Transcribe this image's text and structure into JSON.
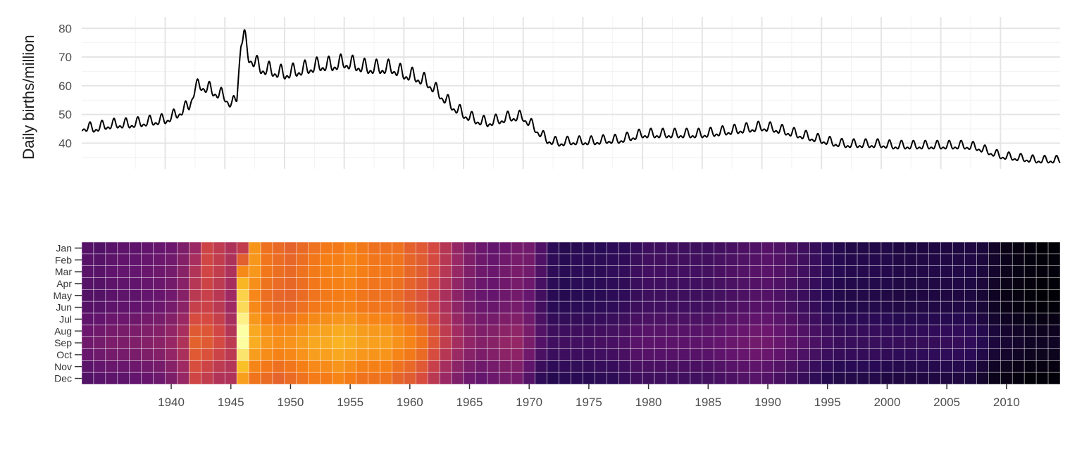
{
  "chart_data": [
    {
      "type": "line",
      "title": "",
      "xlabel": "",
      "ylabel": "Daily births/million",
      "xlim": [
        1933,
        2015
      ],
      "ylim": [
        31,
        84
      ],
      "yticks": [
        40,
        50,
        60,
        70,
        80
      ],
      "grid": true,
      "line_color": "#000000",
      "series": [
        {
          "x": [
            1933.0,
            1934.0,
            1935.0,
            1936.0,
            1937.0,
            1938.0,
            1939.0,
            1940.0,
            1941.0,
            1942.0,
            1942.5,
            1943.0,
            1944.0,
            1945.0,
            1945.6,
            1946.0,
            1946.35,
            1946.6,
            1947.0,
            1948.0,
            1949.0,
            1950.0,
            1951.0,
            1952.0,
            1953.0,
            1954.0,
            1955.0,
            1956.0,
            1957.0,
            1958.0,
            1959.0,
            1960.0,
            1961.0,
            1962.0,
            1963.0,
            1964.0,
            1965.0,
            1966.0,
            1967.0,
            1968.0,
            1969.0,
            1970.0,
            1971.0,
            1972.0,
            1973.0,
            1974.0,
            1975.0,
            1976.0,
            1977.0,
            1978.0,
            1979.0,
            1980.0,
            1981.0,
            1982.0,
            1983.0,
            1984.0,
            1985.0,
            1986.0,
            1987.0,
            1988.0,
            1989.0,
            1990.0,
            1991.0,
            1992.0,
            1993.0,
            1994.0,
            1995.0,
            1996.0,
            1997.0,
            1998.0,
            1999.0,
            2000.0,
            2001.0,
            2002.0,
            2003.0,
            2004.0,
            2005.0,
            2006.0,
            2007.0,
            2008.0,
            2009.0,
            2010.0,
            2011.0,
            2012.0,
            2013.0,
            2014.0,
            2015.0
          ],
          "y": [
            45.5,
            45,
            46,
            46.5,
            46.5,
            47,
            47.5,
            48,
            50,
            53,
            59,
            60,
            58,
            56,
            53,
            56,
            76,
            77,
            70,
            66,
            65,
            64,
            65,
            66,
            67,
            67,
            68,
            67,
            66,
            66,
            66,
            64,
            63,
            61,
            57,
            53,
            50,
            48,
            47,
            48,
            49,
            49,
            45,
            41,
            40,
            40.5,
            40.5,
            40.5,
            41,
            41,
            42,
            43,
            43,
            43,
            43,
            43,
            43,
            43.5,
            44,
            44.5,
            45,
            45.5,
            45,
            44,
            43,
            42,
            41,
            40,
            39.5,
            39.5,
            39.5,
            39.5,
            39,
            39,
            39,
            39,
            39,
            39,
            39,
            38.5,
            37,
            35.5,
            35,
            34.5,
            34,
            34,
            34
          ]
        }
      ]
    },
    {
      "type": "heatmap",
      "title": "",
      "xlabel": "",
      "ylabel": "",
      "xlim": [
        1933,
        2015
      ],
      "x_ticks": [
        "1940",
        "1945",
        "1950",
        "1955",
        "1960",
        "1965",
        "1970",
        "1975",
        "1980",
        "1985",
        "1990",
        "1995",
        "2000",
        "2005",
        "2010"
      ],
      "x_tick_values": [
        1940,
        1945,
        1950,
        1955,
        1960,
        1965,
        1970,
        1975,
        1980,
        1985,
        1990,
        1995,
        2000,
        2005,
        2010
      ],
      "y_categories": [
        "Jan",
        "Feb",
        "Mar",
        "Apr",
        "May",
        "Jun",
        "Jul",
        "Aug",
        "Sep",
        "Oct",
        "Nov",
        "Dec"
      ],
      "x_years": [
        1933,
        2014
      ],
      "color_scale": "inferno",
      "value_range": [
        33,
        79
      ],
      "grid": true
    }
  ]
}
